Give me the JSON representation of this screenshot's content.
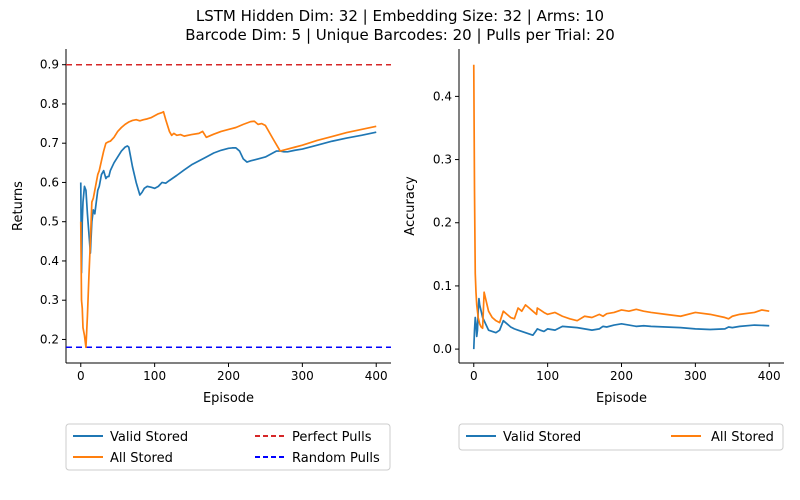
{
  "figure": {
    "title_line1": "LSTM Hidden Dim: 32 | Embedding Size: 32 | Arms: 10",
    "title_line2": "Barcode Dim: 5 | Unique Barcodes: 20 | Pulls per Trial: 20"
  },
  "colors": {
    "valid": "#1f77b4",
    "all": "#ff7f0e",
    "perfect": "#d62728",
    "random": "#0000ff"
  },
  "chart_data": [
    {
      "type": "line",
      "xlabel": "Episode",
      "ylabel": "Returns",
      "xlim": [
        -20,
        420
      ],
      "ylim": [
        0.14,
        0.94
      ],
      "xticks": [
        0,
        100,
        200,
        300,
        400
      ],
      "yticks": [
        0.2,
        0.3,
        0.4,
        0.5,
        0.6,
        0.7,
        0.8,
        0.9
      ],
      "xtick_labels": [
        "0",
        "100",
        "200",
        "300",
        "400"
      ],
      "ytick_labels": [
        "0.2",
        "0.3",
        "0.4",
        "0.5",
        "0.6",
        "0.7",
        "0.8",
        "0.9"
      ],
      "hlines": [
        {
          "name": "Perfect Pulls",
          "y": 0.9,
          "color": "#d62728",
          "style": "dashed"
        },
        {
          "name": "Random Pulls",
          "y": 0.18,
          "color": "#0000ff",
          "style": "dashed"
        }
      ],
      "series": [
        {
          "name": "Valid Stored",
          "color": "#1f77b4",
          "x": [
            0,
            1,
            2,
            3,
            5,
            7,
            9,
            11,
            13,
            15,
            17,
            19,
            21,
            23,
            25,
            28,
            31,
            34,
            36,
            38,
            40,
            45,
            50,
            55,
            60,
            63,
            65,
            67,
            70,
            75,
            80,
            83,
            86,
            90,
            95,
            100,
            105,
            110,
            115,
            120,
            130,
            140,
            150,
            160,
            170,
            180,
            190,
            200,
            205,
            210,
            215,
            220,
            225,
            230,
            240,
            250,
            260,
            265,
            270,
            275,
            280,
            290,
            300,
            320,
            340,
            360,
            380,
            400
          ],
          "y": [
            0.6,
            0.37,
            0.5,
            0.55,
            0.59,
            0.58,
            0.52,
            0.47,
            0.42,
            0.5,
            0.53,
            0.52,
            0.55,
            0.58,
            0.59,
            0.62,
            0.63,
            0.61,
            0.615,
            0.615,
            0.63,
            0.65,
            0.665,
            0.68,
            0.69,
            0.693,
            0.69,
            0.67,
            0.64,
            0.6,
            0.568,
            0.575,
            0.585,
            0.59,
            0.588,
            0.585,
            0.59,
            0.6,
            0.598,
            0.605,
            0.618,
            0.632,
            0.645,
            0.655,
            0.665,
            0.675,
            0.682,
            0.687,
            0.688,
            0.688,
            0.68,
            0.66,
            0.652,
            0.655,
            0.66,
            0.665,
            0.675,
            0.68,
            0.68,
            0.678,
            0.678,
            0.682,
            0.685,
            0.695,
            0.705,
            0.713,
            0.72,
            0.728
          ]
        },
        {
          "name": "All Stored",
          "color": "#ff7f0e",
          "x": [
            0,
            1,
            2,
            3,
            5,
            7,
            9,
            11,
            13,
            15,
            17,
            19,
            21,
            23,
            25,
            28,
            31,
            34,
            36,
            38,
            40,
            45,
            50,
            55,
            60,
            65,
            70,
            75,
            80,
            85,
            90,
            95,
            100,
            105,
            110,
            112,
            115,
            120,
            123,
            126,
            130,
            135,
            140,
            150,
            160,
            165,
            170,
            180,
            190,
            200,
            210,
            220,
            230,
            235,
            240,
            245,
            250,
            260,
            270,
            280,
            290,
            300,
            320,
            340,
            360,
            380,
            400
          ],
          "y": [
            0.5,
            0.3,
            0.28,
            0.23,
            0.21,
            0.18,
            0.26,
            0.36,
            0.45,
            0.55,
            0.56,
            0.58,
            0.6,
            0.62,
            0.63,
            0.655,
            0.68,
            0.7,
            0.702,
            0.704,
            0.705,
            0.715,
            0.73,
            0.74,
            0.748,
            0.754,
            0.758,
            0.76,
            0.757,
            0.76,
            0.762,
            0.765,
            0.77,
            0.775,
            0.778,
            0.78,
            0.76,
            0.73,
            0.72,
            0.725,
            0.72,
            0.722,
            0.718,
            0.722,
            0.725,
            0.73,
            0.715,
            0.723,
            0.73,
            0.735,
            0.74,
            0.748,
            0.755,
            0.756,
            0.748,
            0.75,
            0.745,
            0.712,
            0.68,
            0.685,
            0.69,
            0.695,
            0.707,
            0.717,
            0.727,
            0.735,
            0.743
          ]
        }
      ],
      "legend": {
        "placement": "bottom",
        "columns": 2,
        "entries": [
          "Valid Stored",
          "All Stored",
          "Perfect Pulls",
          "Random Pulls"
        ]
      }
    },
    {
      "type": "line",
      "xlabel": "Episode",
      "ylabel": "Accuracy",
      "xlim": [
        -20,
        420
      ],
      "ylim": [
        -0.022,
        0.475
      ],
      "xticks": [
        0,
        100,
        200,
        300,
        400
      ],
      "yticks": [
        0.0,
        0.1,
        0.2,
        0.3,
        0.4
      ],
      "xtick_labels": [
        "0",
        "100",
        "200",
        "300",
        "400"
      ],
      "ytick_labels": [
        "0.0",
        "0.1",
        "0.2",
        "0.3",
        "0.4"
      ],
      "hlines": [],
      "series": [
        {
          "name": "Valid Stored",
          "color": "#1f77b4",
          "x": [
            0,
            1,
            2,
            3,
            4,
            5,
            6,
            7,
            8,
            10,
            12,
            14,
            16,
            18,
            20,
            25,
            30,
            35,
            40,
            45,
            50,
            55,
            60,
            65,
            70,
            75,
            80,
            85,
            86,
            90,
            95,
            100,
            110,
            120,
            130,
            140,
            150,
            160,
            170,
            175,
            180,
            190,
            200,
            210,
            220,
            230,
            240,
            260,
            280,
            300,
            320,
            340,
            345,
            350,
            360,
            380,
            400
          ],
          "y": [
            0.0,
            0.03,
            0.05,
            0.04,
            0.02,
            0.03,
            0.06,
            0.08,
            0.07,
            0.06,
            0.05,
            0.045,
            0.04,
            0.035,
            0.03,
            0.028,
            0.026,
            0.03,
            0.045,
            0.04,
            0.035,
            0.032,
            0.03,
            0.028,
            0.026,
            0.024,
            0.022,
            0.03,
            0.032,
            0.03,
            0.028,
            0.032,
            0.03,
            0.036,
            0.035,
            0.034,
            0.032,
            0.03,
            0.032,
            0.036,
            0.035,
            0.038,
            0.04,
            0.038,
            0.036,
            0.037,
            0.036,
            0.035,
            0.034,
            0.032,
            0.031,
            0.032,
            0.035,
            0.034,
            0.036,
            0.038,
            0.037
          ]
        },
        {
          "name": "All Stored",
          "color": "#ff7f0e",
          "x": [
            0,
            1,
            2,
            3,
            4,
            5,
            6,
            7,
            8,
            10,
            12,
            14,
            16,
            18,
            20,
            25,
            30,
            35,
            40,
            45,
            50,
            55,
            60,
            65,
            70,
            75,
            80,
            85,
            86,
            90,
            95,
            100,
            110,
            120,
            130,
            140,
            150,
            160,
            170,
            175,
            180,
            190,
            200,
            210,
            220,
            230,
            240,
            260,
            280,
            300,
            320,
            340,
            345,
            350,
            360,
            380,
            390,
            400
          ],
          "y": [
            0.45,
            0.25,
            0.12,
            0.09,
            0.07,
            0.06,
            0.05,
            0.045,
            0.04,
            0.035,
            0.033,
            0.09,
            0.08,
            0.07,
            0.06,
            0.05,
            0.045,
            0.042,
            0.06,
            0.055,
            0.05,
            0.048,
            0.065,
            0.06,
            0.07,
            0.065,
            0.06,
            0.055,
            0.065,
            0.062,
            0.058,
            0.055,
            0.058,
            0.052,
            0.048,
            0.045,
            0.052,
            0.05,
            0.055,
            0.052,
            0.056,
            0.058,
            0.062,
            0.06,
            0.063,
            0.06,
            0.058,
            0.055,
            0.052,
            0.058,
            0.055,
            0.05,
            0.048,
            0.052,
            0.055,
            0.058,
            0.062,
            0.06
          ]
        }
      ],
      "legend": {
        "placement": "bottom",
        "columns": 2,
        "entries": [
          "Valid Stored",
          "All Stored"
        ]
      }
    }
  ]
}
